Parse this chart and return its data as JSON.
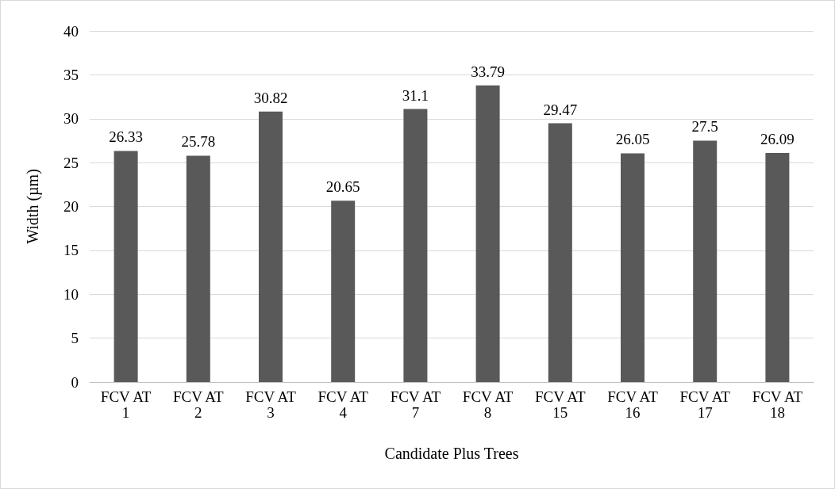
{
  "chart_data": {
    "type": "bar",
    "xlabel": "Candidate Plus Trees",
    "ylabel": "Width (µm)",
    "categories": [
      "FCV AT 1",
      "FCV AT 2",
      "FCV AT 3",
      "FCV AT 4",
      "FCV AT 7",
      "FCV AT 8",
      "FCV AT 15",
      "FCV AT 16",
      "FCV AT 17",
      "FCV AT 18"
    ],
    "values": [
      26.33,
      25.78,
      30.82,
      20.65,
      31.1,
      33.79,
      29.47,
      26.05,
      27.5,
      26.09
    ],
    "color": "#595959",
    "ylim": [
      0,
      40
    ],
    "yticks": [
      0,
      5,
      10,
      15,
      20,
      25,
      30,
      35,
      40
    ],
    "grid": "y",
    "data_labels": true
  }
}
